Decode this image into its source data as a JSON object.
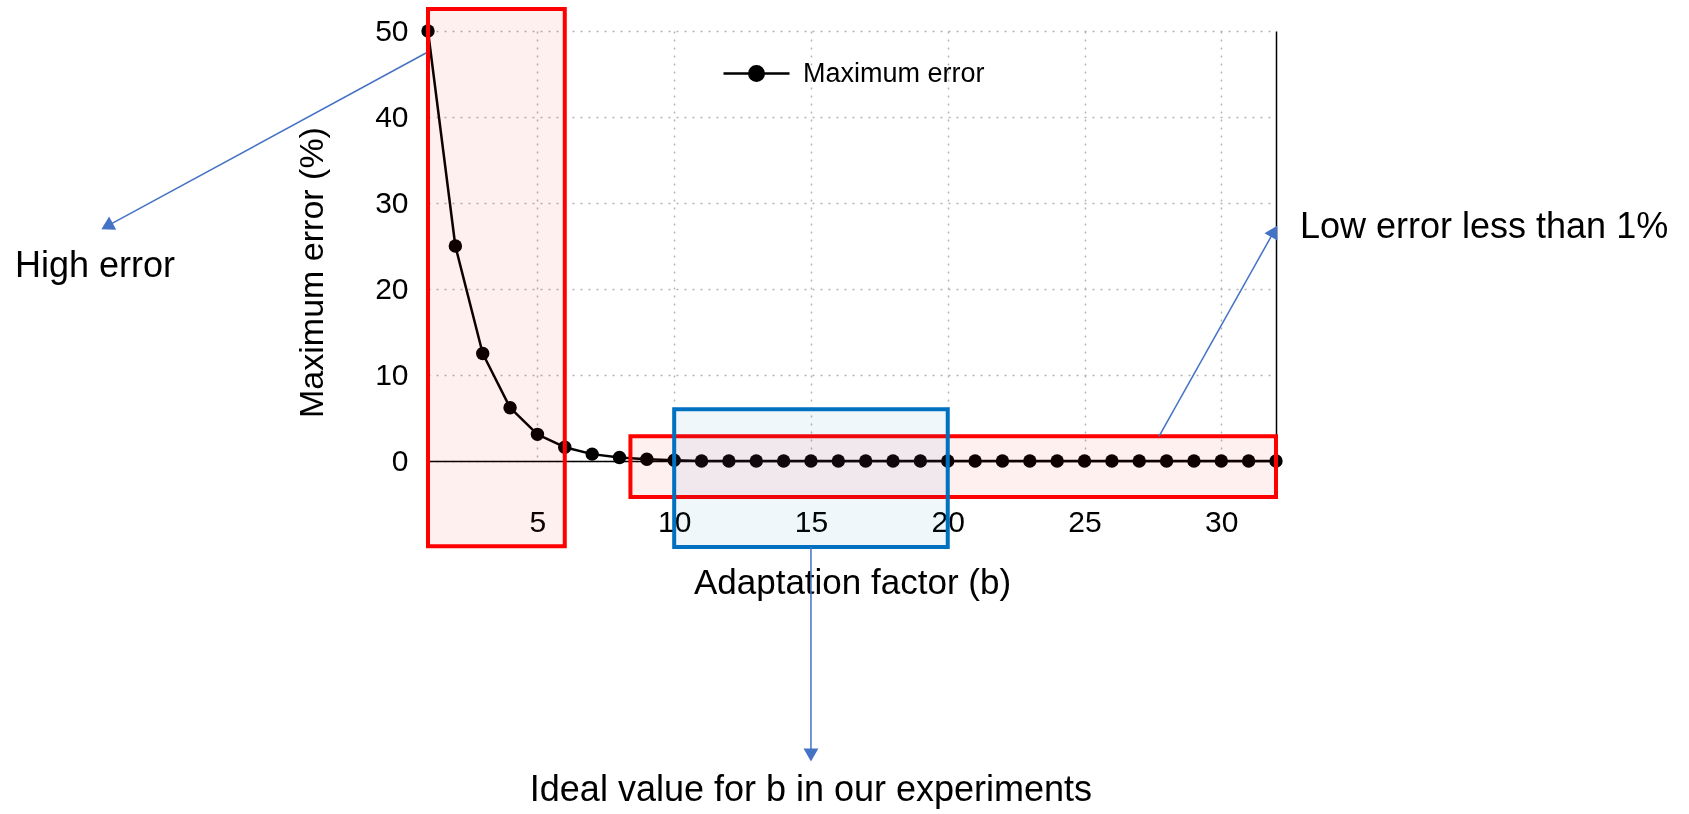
{
  "chart_data": {
    "type": "line",
    "xlabel": "Adaptation factor (b)",
    "ylabel": "Maximum error (%)",
    "x": [
      1,
      2,
      3,
      4,
      5,
      6,
      7,
      8,
      9,
      10,
      11,
      12,
      13,
      14,
      15,
      16,
      17,
      18,
      19,
      20,
      21,
      22,
      23,
      24,
      25,
      26,
      27,
      28,
      29,
      30,
      31,
      32
    ],
    "series": [
      {
        "name": "Maximum error",
        "color": "#000000",
        "values": [
          50,
          25,
          12.5,
          6.2,
          3.1,
          1.6,
          0.8,
          0.4,
          0.2,
          0.1,
          0,
          0,
          0,
          0,
          0,
          0,
          0,
          0,
          0,
          0,
          0,
          0,
          0,
          0,
          0,
          0,
          0,
          0,
          0,
          0,
          0,
          0
        ]
      }
    ],
    "xlim": [
      1,
      32
    ],
    "ylim": [
      0,
      50
    ],
    "xticks": [
      5,
      10,
      15,
      20,
      25,
      30
    ],
    "yticks": [
      0,
      10,
      20,
      30,
      40,
      50
    ],
    "grid": true,
    "legend": "top",
    "marker": "circle",
    "line_style": "solid",
    "bands": [
      {
        "axis": "x",
        "from": 1,
        "to": 6,
        "label": "High error",
        "color": "#ff0000"
      },
      {
        "axis": "x",
        "from": 8.4,
        "to": 32,
        "label": "Low error less than 1%",
        "color": "#ff0000"
      },
      {
        "axis": "x",
        "from": 10,
        "to": 20,
        "label": "Ideal value for b in our experiments",
        "color": "#0070c0"
      }
    ]
  }
}
